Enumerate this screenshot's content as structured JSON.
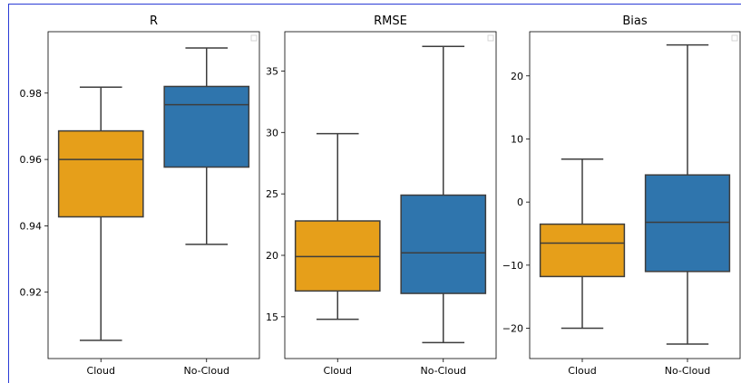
{
  "chart_data": [
    {
      "type": "box",
      "title": "R",
      "categories": [
        "Cloud",
        "No-Cloud"
      ],
      "ylim": [
        0.9,
        0.9985
      ],
      "yticks": [
        0.92,
        0.94,
        0.96,
        0.98
      ],
      "ytick_labels": [
        "0.92",
        "0.94",
        "0.96",
        "0.98"
      ],
      "boxes": [
        {
          "category": "Cloud",
          "whislo": 0.9055,
          "q1": 0.9427,
          "med": 0.96,
          "q3": 0.9686,
          "whishi": 0.9818,
          "color": "#e69f1a"
        },
        {
          "category": "No-Cloud",
          "whislo": 0.9344,
          "q1": 0.9577,
          "med": 0.9765,
          "q3": 0.982,
          "whishi": 0.9936,
          "color": "#2f75ad"
        }
      ],
      "legend": "empty, top-right"
    },
    {
      "type": "box",
      "title": "RMSE",
      "categories": [
        "Cloud",
        "No-Cloud"
      ],
      "ylim": [
        11.6,
        38.2
      ],
      "yticks": [
        15,
        20,
        25,
        30,
        35
      ],
      "ytick_labels": [
        "15",
        "20",
        "25",
        "30",
        "35"
      ],
      "boxes": [
        {
          "category": "Cloud",
          "whislo": 14.8,
          "q1": 17.1,
          "med": 19.9,
          "q3": 22.8,
          "whishi": 29.9,
          "color": "#e69f1a"
        },
        {
          "category": "No-Cloud",
          "whislo": 12.9,
          "q1": 16.9,
          "med": 20.2,
          "q3": 24.9,
          "whishi": 37.0,
          "color": "#2f75ad"
        }
      ],
      "legend": "empty, top-right"
    },
    {
      "type": "box",
      "title": "Bias",
      "categories": [
        "Cloud",
        "No-Cloud"
      ],
      "ylim": [
        -24.8,
        27.0
      ],
      "yticks": [
        -20,
        -10,
        0,
        10,
        20
      ],
      "ytick_labels": [
        "−20",
        "−10",
        "0",
        "10",
        "20"
      ],
      "boxes": [
        {
          "category": "Cloud",
          "whislo": -20.0,
          "q1": -11.8,
          "med": -6.5,
          "q3": -3.5,
          "whishi": 6.8,
          "color": "#e69f1a"
        },
        {
          "category": "No-Cloud",
          "whislo": -22.5,
          "q1": -11.0,
          "med": -3.2,
          "q3": 4.3,
          "whishi": 24.9,
          "color": "#2f75ad"
        }
      ],
      "legend": "empty, top-right"
    }
  ],
  "colors": {
    "cloud": "#e69f1a",
    "no_cloud": "#2f75ad",
    "frame_border": "#2a3bd6",
    "line": "#3d3d3d"
  }
}
